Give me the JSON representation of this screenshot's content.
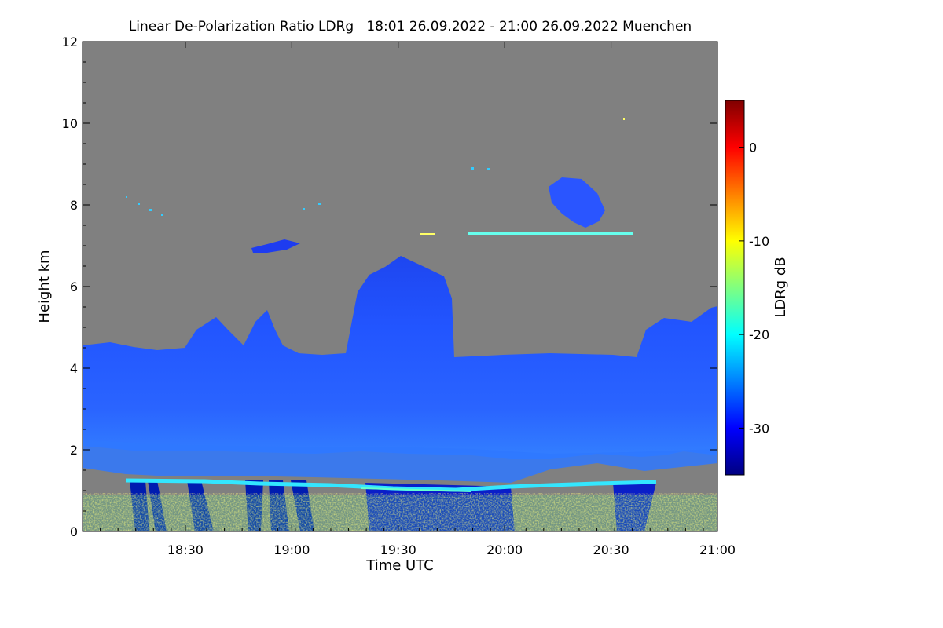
{
  "chart_data": {
    "type": "heatmap",
    "title": "Linear De-Polarization Ratio LDRg   18:01 26.09.2022 - 21:00 26.09.2022 Muenchen",
    "xlabel": "Time UTC",
    "ylabel": "Height km",
    "x_range": [
      "18:01",
      "21:00"
    ],
    "x_ticks": [
      {
        "label": "18:30",
        "minutes": 29
      },
      {
        "label": "19:00",
        "minutes": 59
      },
      {
        "label": "19:30",
        "minutes": 89
      },
      {
        "label": "20:00",
        "minutes": 119
      },
      {
        "label": "20:30",
        "minutes": 149
      },
      {
        "label": "21:00",
        "minutes": 179
      }
    ],
    "y_range": [
      0,
      12
    ],
    "y_ticks": [
      0,
      2,
      4,
      6,
      8,
      10,
      12
    ],
    "colorbar": {
      "label": "LDRg dB",
      "range": [
        -35,
        5
      ],
      "ticks": [
        0,
        -10,
        -20,
        -30
      ],
      "colormap": [
        "#000080",
        "#0000ff",
        "#0080ff",
        "#00ffff",
        "#80ff80",
        "#ffff00",
        "#ff8000",
        "#ff0000",
        "#800000"
      ]
    },
    "no_data_color": "#808080",
    "features": {
      "main_layer_top_km": 4.3,
      "main_layer_base_km": 1.9,
      "bright_line_km": 1.1,
      "convective_tower_top_km": 6.8,
      "upper_cloud_km": 8.3,
      "thin_layer_km": 7.3
    }
  }
}
